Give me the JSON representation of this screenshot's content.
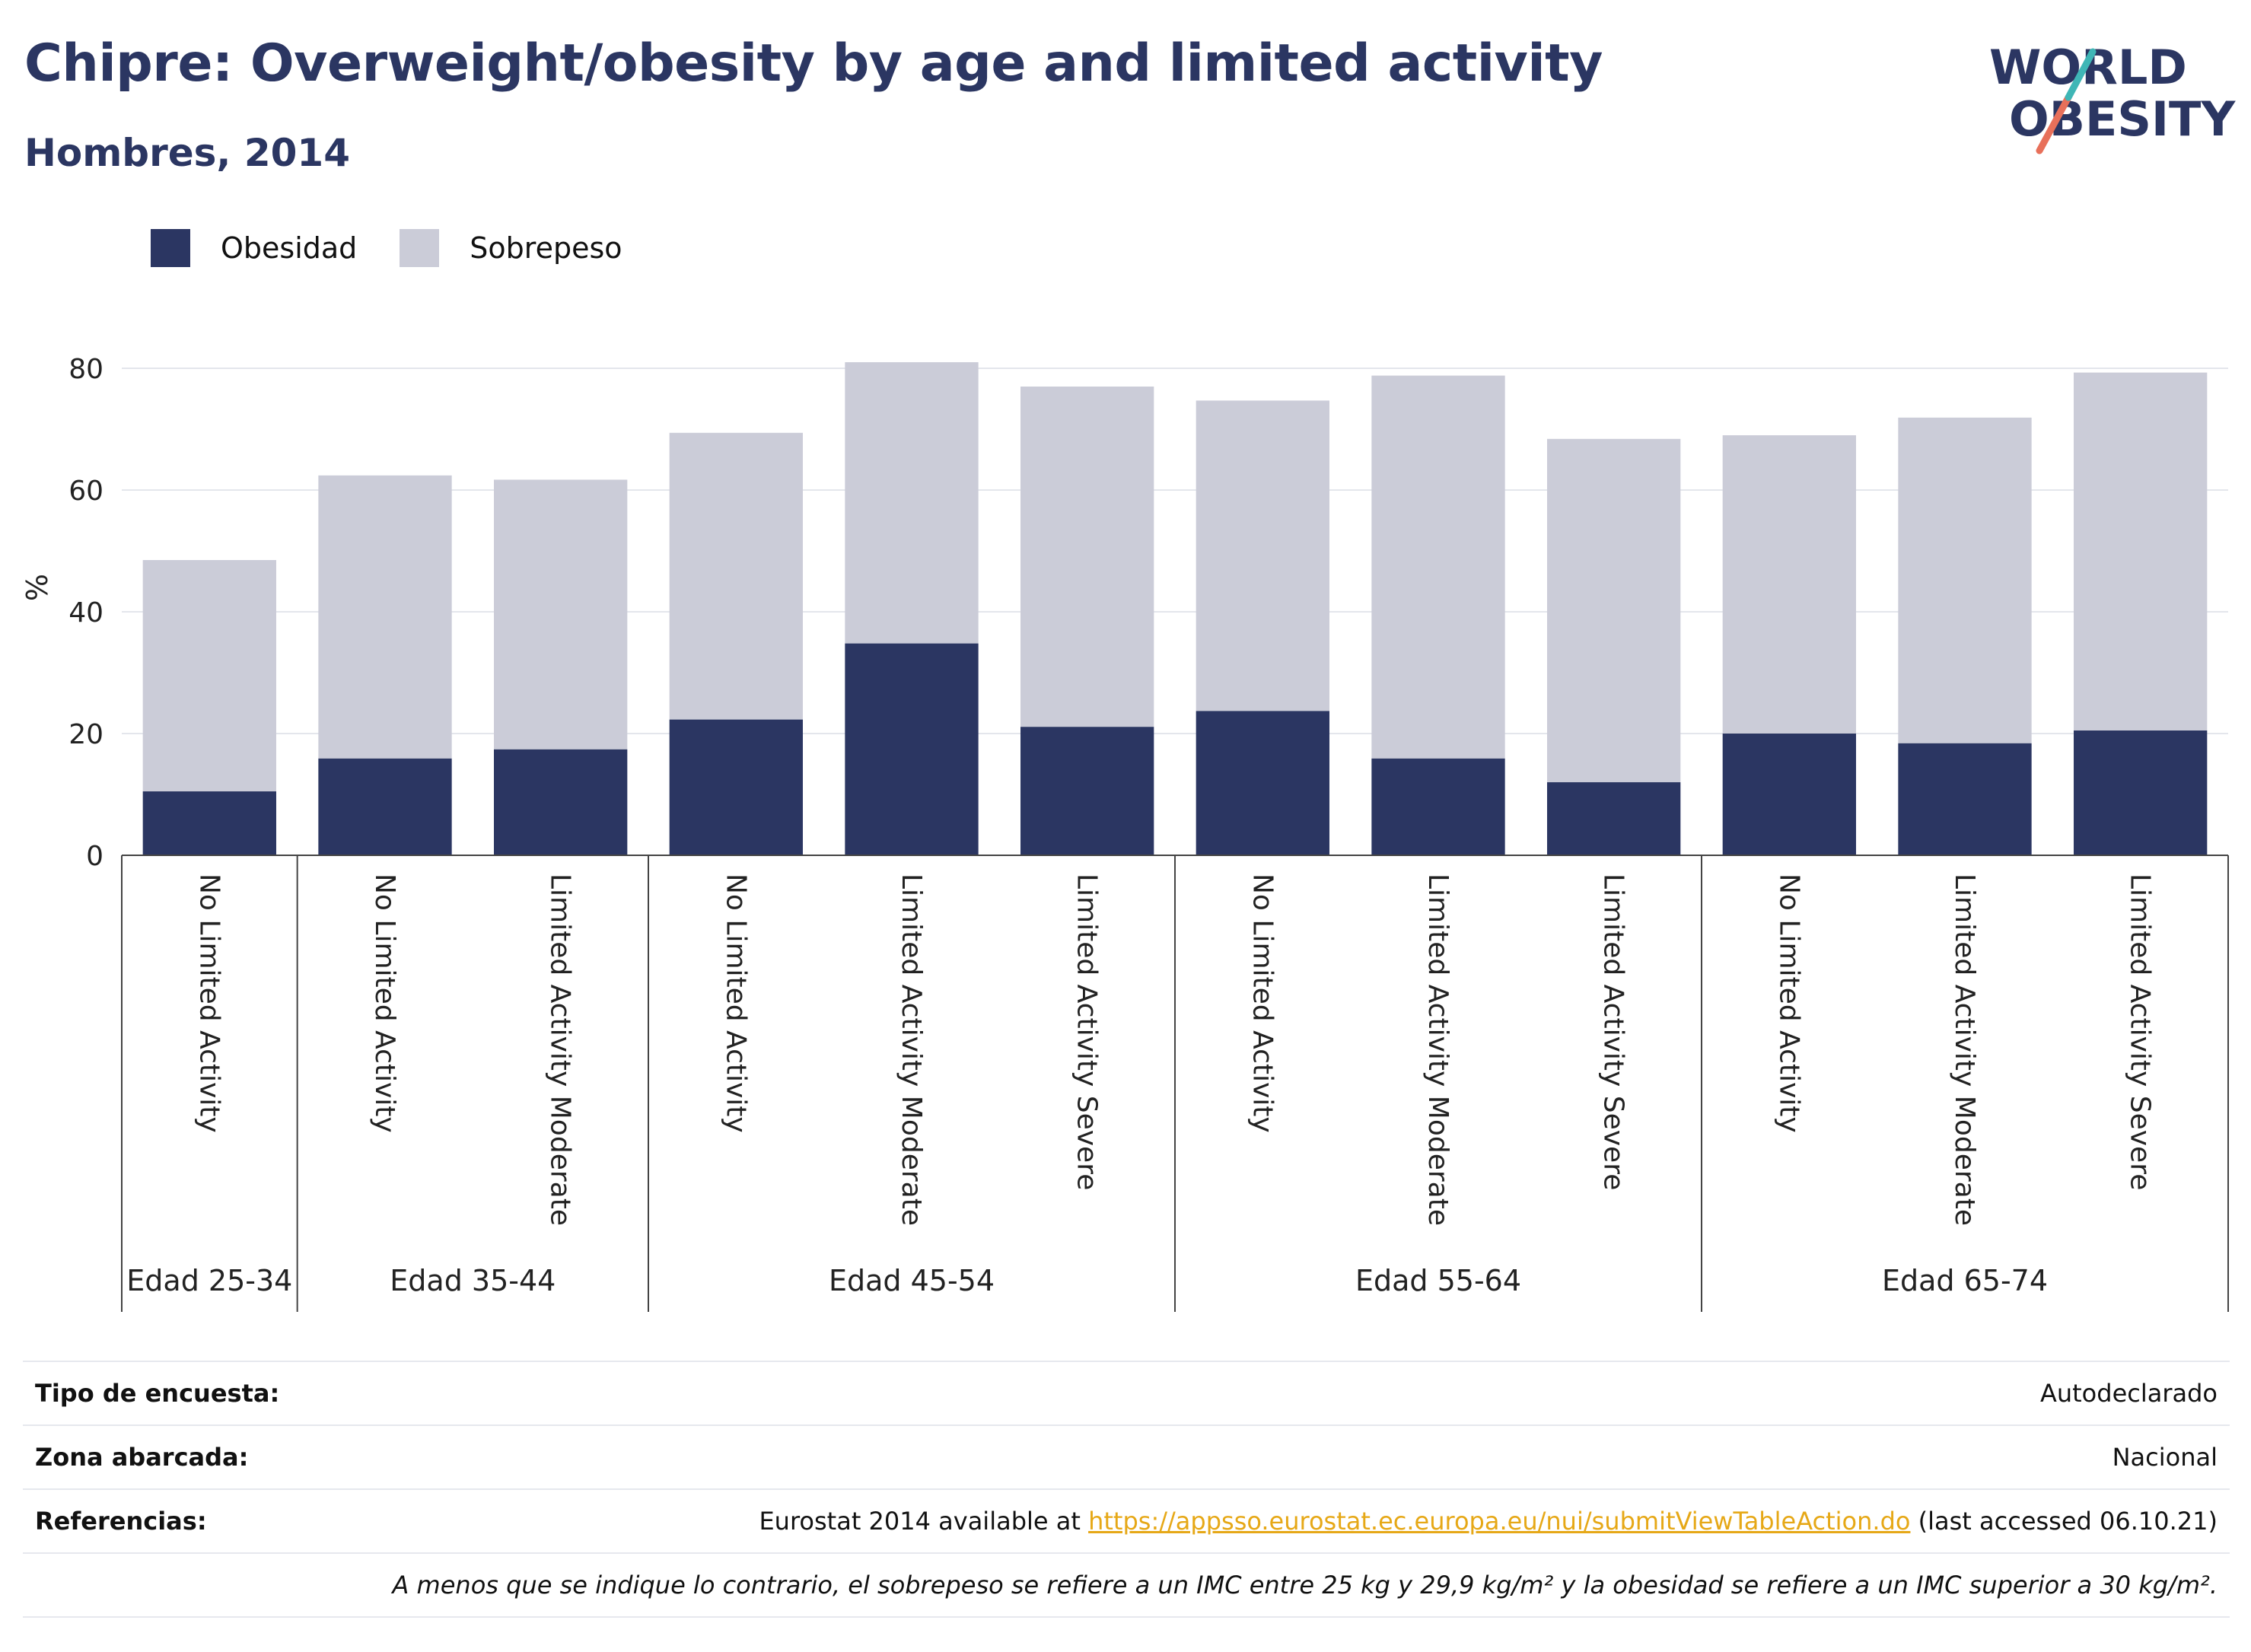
{
  "title": "Chipre: Overweight/obesity by age and limited activity",
  "subtitle": "Hombres, 2014",
  "logo": {
    "line1": "WORLD",
    "line2": "OBESITY"
  },
  "colors": {
    "obesity": "#2b3662",
    "overweight": "#cbccd8",
    "title": "#2b3662",
    "link": "#e6a817"
  },
  "chart_data": {
    "type": "bar",
    "stacked": true,
    "ylabel": "%",
    "ylim": [
      0,
      88
    ],
    "yticks": [
      0,
      20,
      40,
      60,
      80
    ],
    "grid": true,
    "legend_position": "top-left",
    "legend": [
      "Obesidad",
      "Sobrepeso"
    ],
    "categories": [
      "No Limited Activity",
      "No Limited Activity",
      "Limited Activity Moderate",
      "No Limited Activity",
      "Limited Activity Moderate",
      "Limited Activity Severe",
      "No Limited Activity",
      "Limited Activity Moderate",
      "Limited Activity Severe",
      "No Limited Activity",
      "Limited Activity Moderate",
      "Limited Activity Severe"
    ],
    "groups": [
      {
        "label": "Edad 25-34",
        "count": 1
      },
      {
        "label": "Edad 35-44",
        "count": 2
      },
      {
        "label": "Edad 45-54",
        "count": 3
      },
      {
        "label": "Edad 55-64",
        "count": 3
      },
      {
        "label": "Edad 65-74",
        "count": 3
      }
    ],
    "series": [
      {
        "name": "Obesidad",
        "values": [
          10.5,
          15.9,
          17.4,
          22.3,
          34.8,
          21.1,
          23.7,
          15.9,
          12.0,
          20.0,
          18.4,
          20.5
        ]
      },
      {
        "name": "Sobrepeso",
        "values": [
          38.0,
          46.5,
          44.3,
          47.1,
          46.2,
          55.9,
          51.0,
          62.9,
          56.4,
          49.0,
          53.5,
          58.8
        ]
      }
    ]
  },
  "footer": {
    "survey_label": "Tipo de encuesta:",
    "survey_value": "Autodeclarado",
    "area_label": "Zona abarcada:",
    "area_value": "Nacional",
    "ref_label": "Referencias:",
    "ref_prefix": "Eurostat 2014 available at ",
    "ref_link": "https://appsso.eurostat.ec.europa.eu/nui/submitViewTableAction.do",
    "ref_suffix": " (last accessed 06.10.21)",
    "note": "A menos que se indique lo contrario, el sobrepeso se refiere a un IMC entre 25 kg y 29,9 kg/m² y la obesidad se refiere a un IMC superior a 30 kg/m²."
  }
}
